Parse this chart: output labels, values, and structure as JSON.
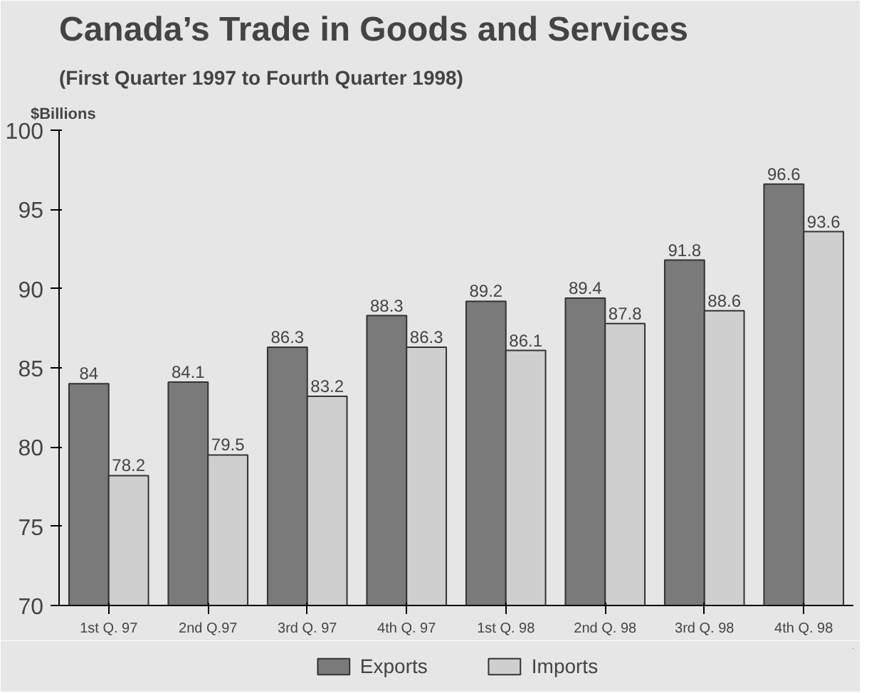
{
  "chart_data": {
    "type": "bar",
    "title": "Canada’s Trade in Goods and Services",
    "subtitle": "(First Quarter 1997 to Fourth Quarter 1998)",
    "ylabel": "$Billions",
    "categories": [
      "1st Q. 97",
      "2nd Q.97",
      "3rd Q. 97",
      "4th Q. 97",
      "1st Q. 98",
      "2nd Q. 98",
      "3rd Q. 98",
      "4th Q. 98"
    ],
    "series": [
      {
        "name": "Exports",
        "color": "#7a7a7a",
        "values": [
          84,
          84.1,
          86.3,
          88.3,
          89.2,
          89.4,
          91.8,
          96.6
        ]
      },
      {
        "name": "Imports",
        "color": "#cfcfcf",
        "values": [
          78.2,
          79.5,
          83.2,
          86.3,
          86.1,
          87.8,
          88.6,
          93.6
        ]
      }
    ],
    "ylim": [
      70,
      100
    ],
    "yticks": [
      70,
      75,
      80,
      85,
      90,
      95,
      100
    ],
    "data_labels": true,
    "legend": "bottom"
  }
}
